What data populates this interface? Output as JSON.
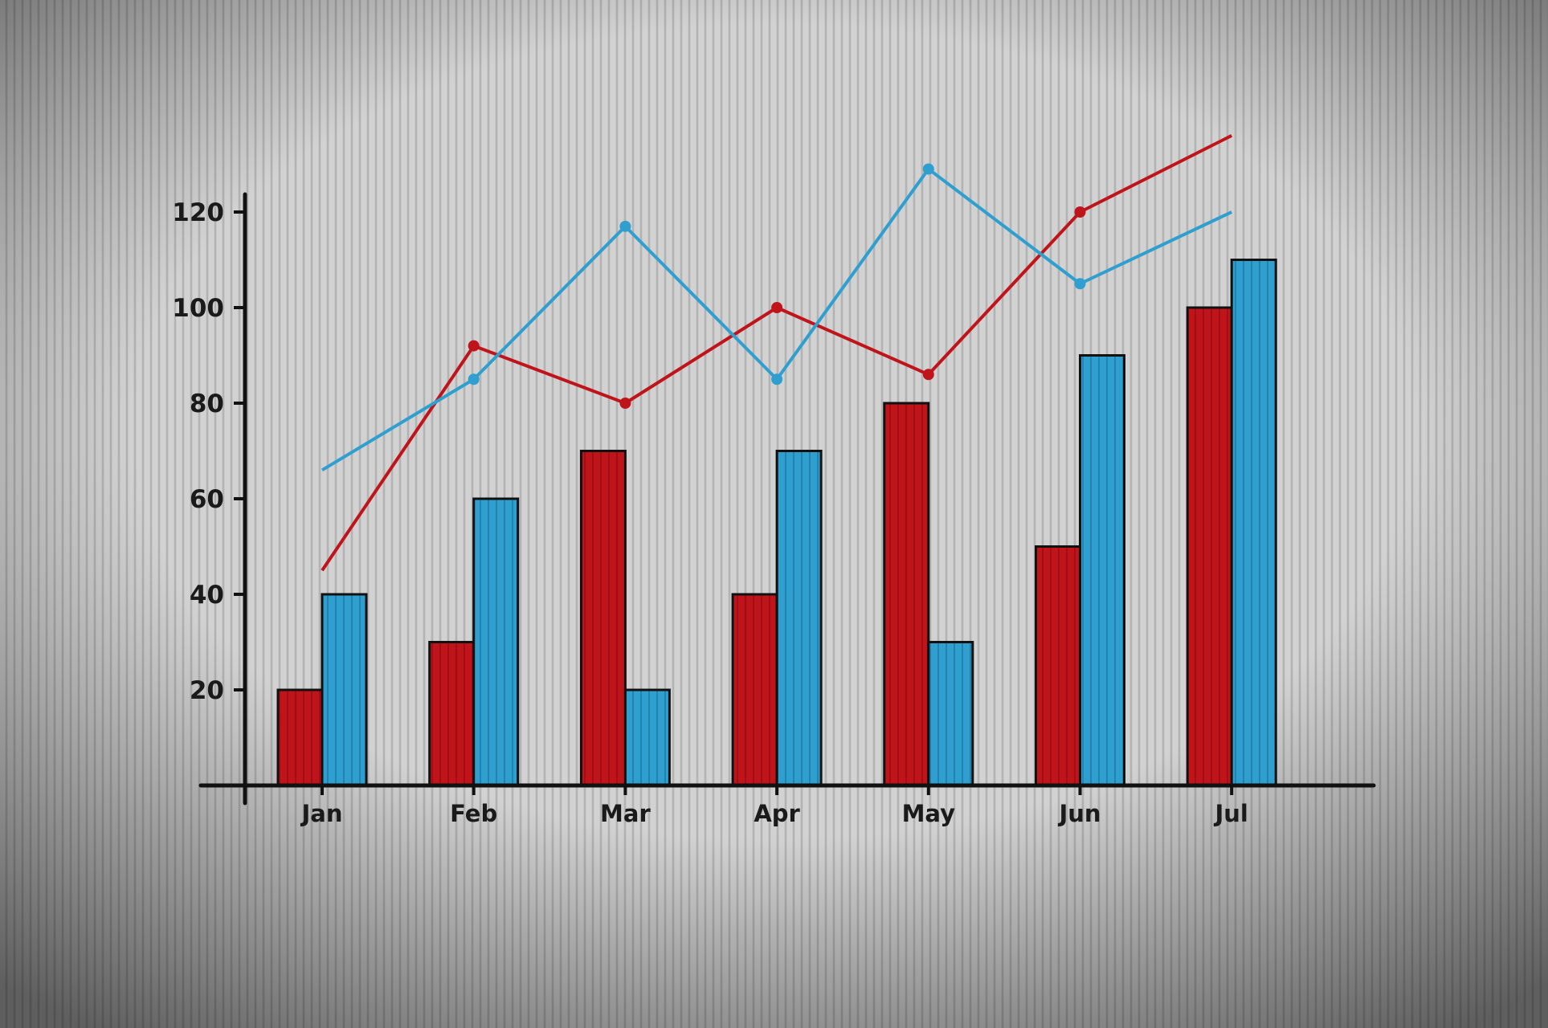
{
  "chart_data": {
    "type": "bar",
    "title": "",
    "xlabel": "",
    "ylabel": "",
    "categories": [
      "Jan",
      "Feb",
      "Mar",
      "Apr",
      "May",
      "Jun",
      "Jul"
    ],
    "ylim": [
      0,
      130
    ],
    "yticks": [
      "20",
      "40",
      "60",
      "80",
      "100",
      "120"
    ],
    "grid": false,
    "legend": "none",
    "colors": {
      "red": "#c0141b",
      "blue": "#2f9fd0",
      "axis": "#111111"
    },
    "series": [
      {
        "type": "bar",
        "color": "red",
        "values": [
          20,
          30,
          70,
          40,
          80,
          50,
          100
        ]
      },
      {
        "type": "bar",
        "color": "blue",
        "values": [
          40,
          60,
          20,
          70,
          30,
          90,
          110
        ]
      },
      {
        "type": "line",
        "color": "red",
        "values": [
          45,
          92,
          80,
          100,
          86,
          120,
          136
        ]
      },
      {
        "type": "line",
        "color": "blue",
        "values": [
          66,
          85,
          117,
          85,
          129,
          105,
          120
        ]
      }
    ]
  }
}
